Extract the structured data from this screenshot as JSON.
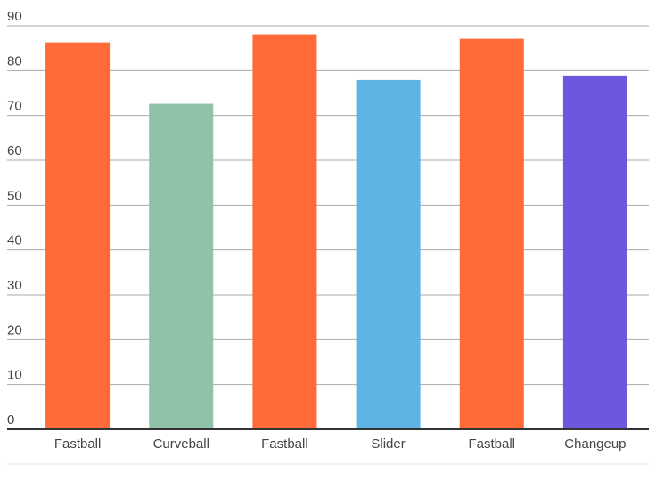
{
  "chart_data": {
    "type": "bar",
    "categories": [
      "Fastball",
      "Curveball",
      "Fastball",
      "Slider",
      "Fastball",
      "Changeup"
    ],
    "values": [
      86.3,
      72.6,
      88.1,
      77.9,
      87.1,
      78.9
    ],
    "colors": [
      "#ff6b38",
      "#8fc2a8",
      "#ff6b38",
      "#5eb4e4",
      "#ff6b38",
      "#6e57dc"
    ],
    "ylim": [
      0,
      90
    ],
    "yticks": [
      0,
      10,
      20,
      30,
      40,
      50,
      60,
      70,
      80,
      90
    ],
    "grid": true
  }
}
